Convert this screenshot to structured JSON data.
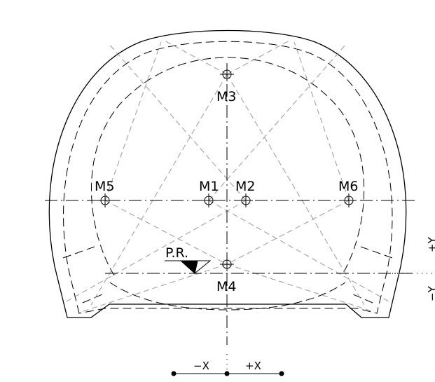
{
  "drawing": {
    "centers": [
      {
        "id": "m3",
        "label": "M3"
      },
      {
        "id": "m5",
        "label": "M5"
      },
      {
        "id": "m1",
        "label": "M1"
      },
      {
        "id": "m2",
        "label": "M2"
      },
      {
        "id": "m6",
        "label": "M6"
      },
      {
        "id": "m4",
        "label": "M4"
      }
    ],
    "reference_point_label": "P.R.",
    "axes": {
      "neg_x": "−X",
      "pos_x": "+X",
      "pos_y": "+Y",
      "neg_y": "−Y"
    }
  }
}
